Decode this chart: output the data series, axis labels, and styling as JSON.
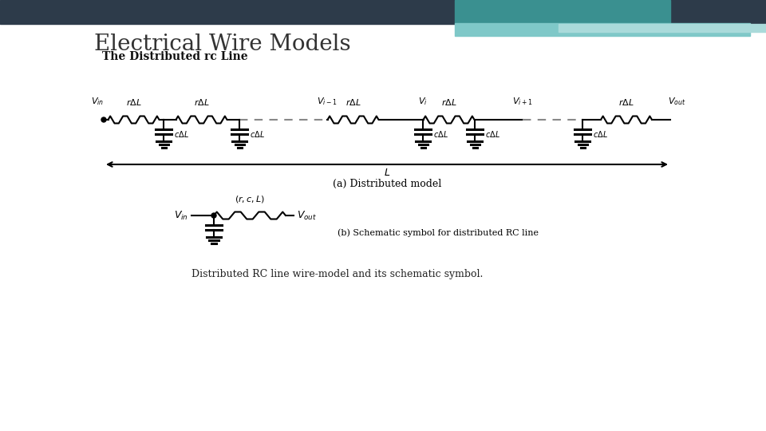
{
  "title": "Electrical Wire Models",
  "subtitle": "The Distributed rc Line",
  "bg_color": "#ffffff",
  "header_color": "#2d3b4a",
  "teal_color": "#3a9090",
  "light_teal_color": "#7fc8c8",
  "lighter_teal_color": "#aadada",
  "caption_a": "(a) Distributed model",
  "caption_b": "(b) Schematic symbol for distributed RC line",
  "bottom_caption": "Distributed RC line wire-model and its schematic symbol.",
  "title_fontsize": 20,
  "subtitle_fontsize": 10
}
